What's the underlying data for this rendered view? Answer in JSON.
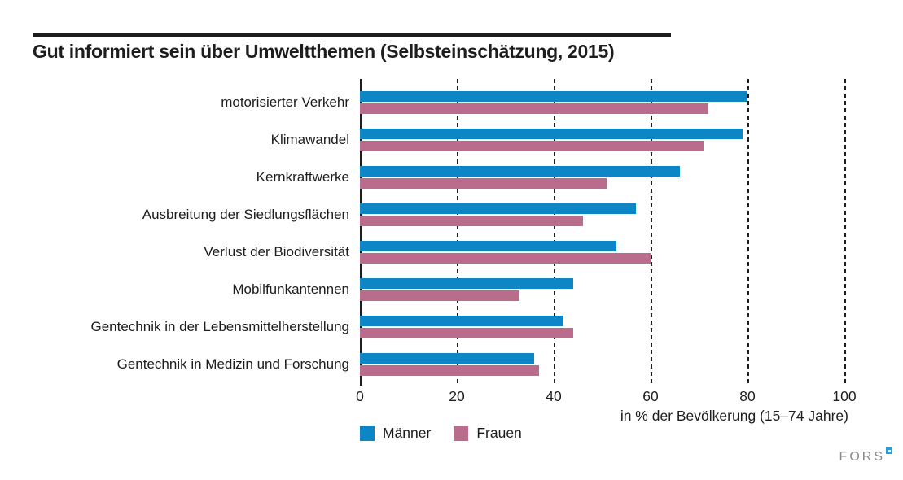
{
  "chart_data": {
    "type": "bar",
    "orientation": "horizontal",
    "title": "Gut informiert sein über Umweltthemen (Selbsteinschätzung, 2015)",
    "categories": [
      "motorisierter Verkehr",
      "Klimawandel",
      "Kernkraftwerke",
      "Ausbreitung der Siedlungsflächen",
      "Verlust der Biodiversität",
      "Mobilfunkantennen",
      "Gentechnik in der Lebensmittelherstellung",
      "Gentechnik in Medizin und Forschung"
    ],
    "series": [
      {
        "name": "Männer",
        "color": "#0e85c4",
        "values": [
          80,
          79,
          66,
          57,
          53,
          44,
          42,
          36
        ]
      },
      {
        "name": "Frauen",
        "color": "#b96c8c",
        "values": [
          72,
          71,
          51,
          46,
          60,
          33,
          44,
          37
        ]
      }
    ],
    "xlabel": "in % der Bevölkerung (15–74 Jahre)",
    "xlim": [
      0,
      100
    ],
    "xticks": [
      0,
      20,
      40,
      60,
      80,
      100
    ],
    "grid": "vertical-dashed",
    "legend_position": "bottom-left",
    "bar_text_color": "#1d1d1b"
  },
  "footer": {
    "logo_text": "FORS"
  }
}
